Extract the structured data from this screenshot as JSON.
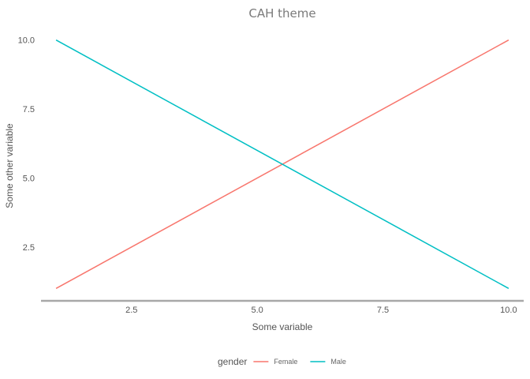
{
  "chart_data": {
    "type": "line",
    "title": "CAH theme",
    "xlabel": "Some variable",
    "ylabel": "Some other variable",
    "xlim": [
      0.7,
      10.3
    ],
    "ylim": [
      0.55,
      10.45
    ],
    "x_ticks": [
      2.5,
      5.0,
      7.5,
      10.0
    ],
    "x_tick_labels": [
      "2.5",
      "5.0",
      "7.5",
      "10.0"
    ],
    "y_ticks": [
      2.5,
      5.0,
      7.5,
      10.0
    ],
    "y_tick_labels": [
      "2.5",
      "5.0",
      "7.5",
      "10.0"
    ],
    "grid": false,
    "legend_placement": "bottom",
    "legend_title": "gender",
    "series": [
      {
        "name": "Female",
        "color": "#F8766D",
        "x": [
          1,
          10
        ],
        "y": [
          1,
          10
        ]
      },
      {
        "name": "Male",
        "color": "#00BFC4",
        "x": [
          1,
          10
        ],
        "y": [
          10,
          1
        ]
      }
    ]
  }
}
